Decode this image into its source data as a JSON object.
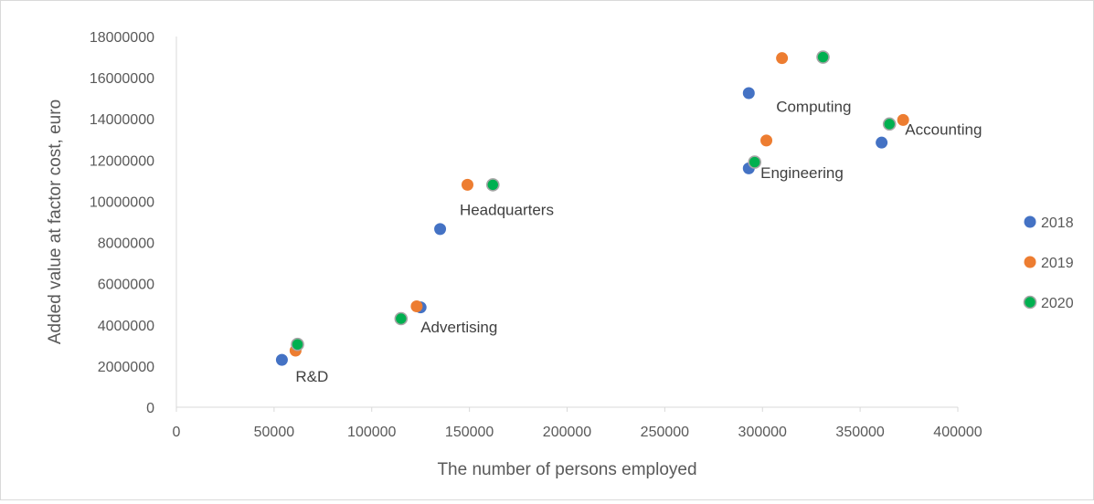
{
  "chart_data": {
    "type": "scatter",
    "title": "",
    "xlabel": "The number of persons employed",
    "ylabel": "Added value at factor cost, euro",
    "xlim": [
      0,
      400000
    ],
    "ylim": [
      0,
      18000000
    ],
    "x_ticks": [
      0,
      50000,
      100000,
      150000,
      200000,
      250000,
      300000,
      350000,
      400000
    ],
    "y_ticks": [
      0,
      2000000,
      4000000,
      6000000,
      8000000,
      10000000,
      12000000,
      14000000,
      16000000,
      18000000
    ],
    "grid": false,
    "legend_position": "right",
    "series": [
      {
        "name": "2018",
        "color": "#4472C4",
        "points": [
          {
            "x": 54000,
            "y": 2300000
          },
          {
            "x": 125000,
            "y": 4850000
          },
          {
            "x": 135000,
            "y": 8650000
          },
          {
            "x": 293000,
            "y": 15250000
          },
          {
            "x": 293000,
            "y": 11600000
          },
          {
            "x": 361000,
            "y": 12850000
          }
        ]
      },
      {
        "name": "2019",
        "color": "#ED7D31",
        "points": [
          {
            "x": 61000,
            "y": 2750000
          },
          {
            "x": 123000,
            "y": 4900000
          },
          {
            "x": 149000,
            "y": 10800000
          },
          {
            "x": 310000,
            "y": 16950000
          },
          {
            "x": 302000,
            "y": 12950000
          },
          {
            "x": 372000,
            "y": 13950000
          }
        ]
      },
      {
        "name": "2020",
        "color": "#00B050",
        "outline": "#A5A5A5",
        "points": [
          {
            "x": 62000,
            "y": 3050000
          },
          {
            "x": 115000,
            "y": 4300000
          },
          {
            "x": 162000,
            "y": 10800000
          },
          {
            "x": 331000,
            "y": 17000000
          },
          {
            "x": 296000,
            "y": 11900000
          },
          {
            "x": 365000,
            "y": 13750000
          }
        ]
      }
    ],
    "annotations": [
      {
        "text": "R&D",
        "x": 61000,
        "y": 1500000
      },
      {
        "text": "Advertising",
        "x": 125000,
        "y": 3900000
      },
      {
        "text": "Headquarters",
        "x": 145000,
        "y": 9600000
      },
      {
        "text": "Computing",
        "x": 307000,
        "y": 14600000
      },
      {
        "text": "Engineering",
        "x": 299000,
        "y": 11400000
      },
      {
        "text": "Accounting",
        "x": 373000,
        "y": 13500000
      }
    ]
  }
}
